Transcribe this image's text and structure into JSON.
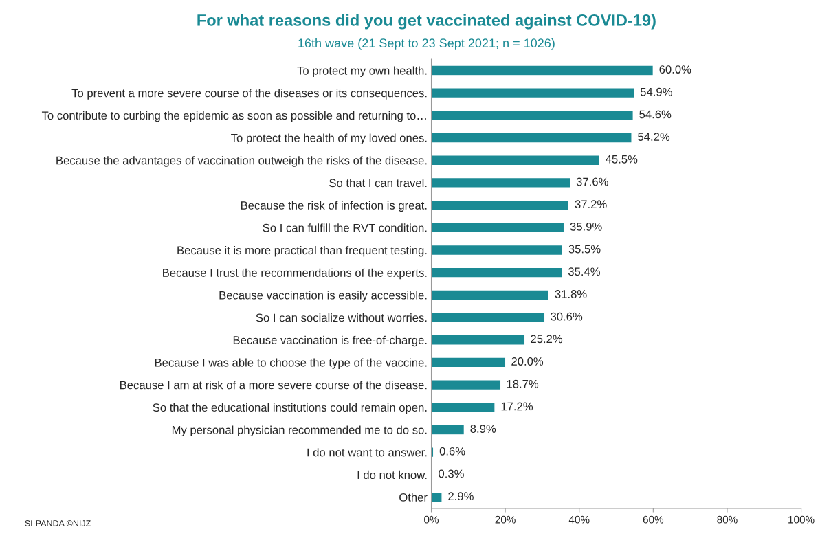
{
  "chart_data": {
    "type": "bar",
    "orientation": "horizontal",
    "title": "For what reasons did you get vaccinated against COVID-19)",
    "subtitle": "16th wave (21 Sept to 23 Sept 2021; n = 1026)",
    "categories": [
      "To protect my own health.",
      "To prevent a more severe course of the diseases or its consequences.",
      "To contribute to curbing the epidemic as soon as possible and returning to…",
      "To protect the health of my loved ones.",
      "Because the advantages of vaccination outweigh the risks of the disease.",
      "So that I can travel.",
      "Because the risk of infection is great.",
      "So I can fulfill the RVT condition.",
      "Because it is more practical than frequent testing.",
      "Because I trust the recommendations of the experts.",
      "Because vaccination is easily accessible.",
      "So I can socialize without worries.",
      "Because vaccination is free-of-charge.",
      "Because I was able to choose the type of the vaccine.",
      "Because I am at risk of a more severe course of the disease.",
      "So that the educational institutions could remain open.",
      "My personal physician recommended me to do so.",
      "I do not want to answer.",
      "I do not know.",
      "Other"
    ],
    "values": [
      60.0,
      54.9,
      54.6,
      54.2,
      45.5,
      37.6,
      37.2,
      35.9,
      35.5,
      35.4,
      31.8,
      30.6,
      25.2,
      20.0,
      18.7,
      17.2,
      8.9,
      0.6,
      0.3,
      2.9
    ],
    "value_labels": [
      "60.0%",
      "54.9%",
      "54.6%",
      "54.2%",
      "45.5%",
      "37.6%",
      "37.2%",
      "35.9%",
      "35.5%",
      "35.4%",
      "31.8%",
      "30.6%",
      "25.2%",
      "20.0%",
      "18.7%",
      "17.2%",
      "8.9%",
      "0.6%",
      "0.3%",
      "2.9%"
    ],
    "color": "#1a8a94",
    "xlim": [
      0,
      100
    ],
    "xticks": [
      {
        "value": 0,
        "label": "0%"
      },
      {
        "value": 20,
        "label": "20%"
      },
      {
        "value": 40,
        "label": "40%"
      },
      {
        "value": 60,
        "label": "60%"
      },
      {
        "value": 80,
        "label": "80%"
      },
      {
        "value": 100,
        "label": "100%"
      }
    ],
    "annotations": [
      "SI-PANDA ©NIJZ"
    ]
  }
}
